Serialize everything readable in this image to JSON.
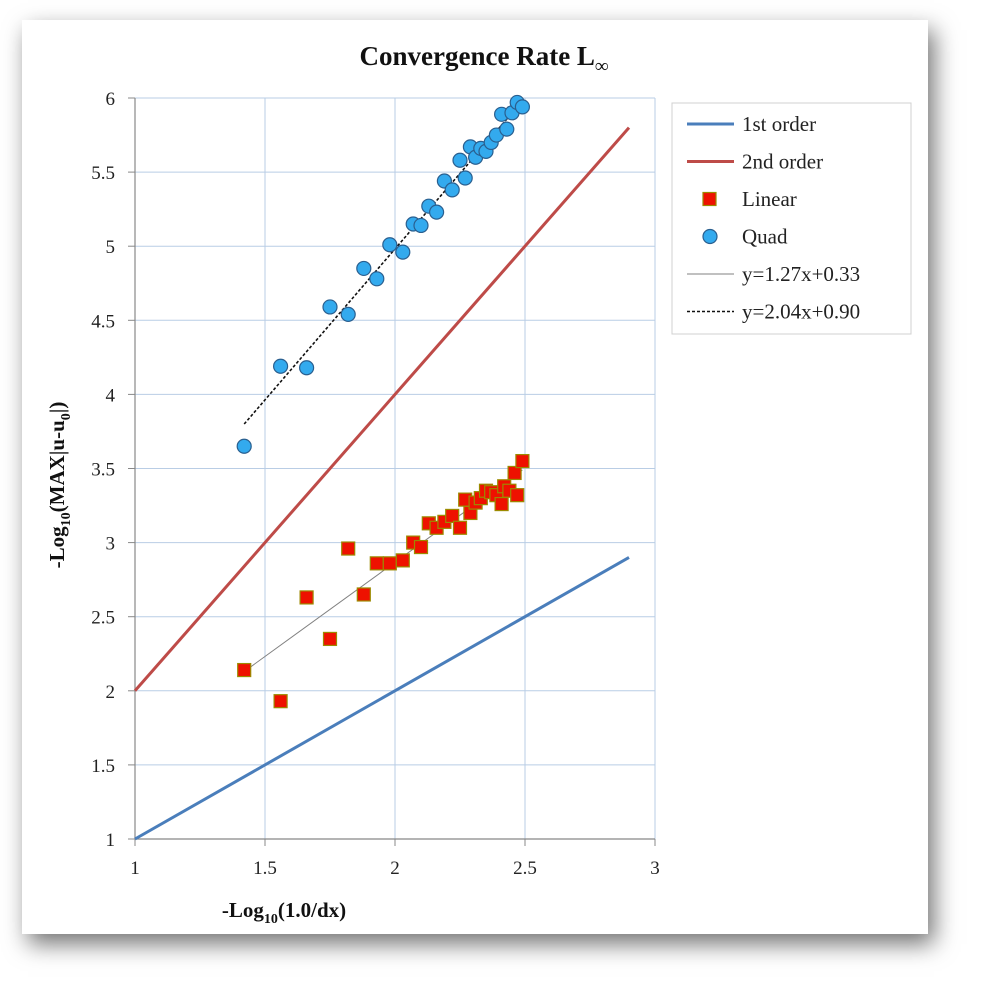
{
  "chart_data": {
    "type": "scatter",
    "title": "Convergence Rate L",
    "title_sub": "∞",
    "xlabel": {
      "pre": "-Log",
      "sub": "10",
      "post": "(1.0/dx)"
    },
    "ylabel": {
      "pre": "-Log",
      "sub": "10",
      "mid": "(MAX|u-u",
      "sub2": "0",
      "post": "|)"
    },
    "xlim": [
      1,
      3
    ],
    "ylim": [
      1,
      6
    ],
    "x_ticks": [
      "1",
      "1.5",
      "2",
      "2.5",
      "3"
    ],
    "y_ticks": [
      "1",
      "1.5",
      "2",
      "2.5",
      "3",
      "3.5",
      "4",
      "4.5",
      "5",
      "5.5",
      "6"
    ],
    "grid": true,
    "legend_position": "right",
    "series": [
      {
        "name": "1st order",
        "kind": "line",
        "color": "#4a7ebb",
        "x": [
          1.0,
          2.9
        ],
        "y": [
          1.0,
          2.9
        ]
      },
      {
        "name": "2nd order",
        "kind": "line",
        "color": "#be4b48",
        "x": [
          1.0,
          2.9
        ],
        "y": [
          2.0,
          5.8
        ]
      },
      {
        "name": "Linear",
        "kind": "marker-square",
        "color": "#ee1100",
        "stroke": "#9c8a00",
        "x": [
          1.42,
          1.56,
          1.66,
          1.75,
          1.82,
          1.88,
          1.93,
          1.98,
          2.03,
          2.07,
          2.1,
          2.13,
          2.16,
          2.19,
          2.22,
          2.25,
          2.27,
          2.29,
          2.31,
          2.33,
          2.35,
          2.37,
          2.39,
          2.41,
          2.42,
          2.44,
          2.46,
          2.47,
          2.49
        ],
        "y": [
          2.14,
          1.93,
          2.63,
          2.35,
          2.96,
          2.65,
          2.86,
          2.86,
          2.88,
          3.0,
          2.97,
          3.13,
          3.1,
          3.14,
          3.18,
          3.1,
          3.29,
          3.2,
          3.27,
          3.3,
          3.35,
          3.34,
          3.32,
          3.26,
          3.38,
          3.35,
          3.47,
          3.32,
          3.55
        ]
      },
      {
        "name": "Quad",
        "kind": "marker-circle",
        "color": "#33aaee",
        "stroke": "#2a5f8f",
        "x": [
          1.42,
          1.56,
          1.66,
          1.75,
          1.82,
          1.88,
          1.93,
          1.98,
          2.03,
          2.07,
          2.1,
          2.13,
          2.16,
          2.19,
          2.22,
          2.25,
          2.27,
          2.29,
          2.31,
          2.33,
          2.35,
          2.37,
          2.39,
          2.41,
          2.43,
          2.45,
          2.47,
          2.49
        ],
        "y": [
          3.65,
          4.19,
          4.18,
          4.59,
          4.54,
          4.85,
          4.78,
          5.01,
          4.96,
          5.15,
          5.14,
          5.27,
          5.23,
          5.44,
          5.38,
          5.58,
          5.46,
          5.67,
          5.6,
          5.66,
          5.64,
          5.7,
          5.75,
          5.89,
          5.79,
          5.9,
          5.97,
          5.94
        ]
      },
      {
        "name": "y=1.27x+0.33",
        "kind": "trend-solid",
        "color": "#808080",
        "x": [
          1.42,
          2.49
        ],
        "y": [
          2.13,
          3.49
        ]
      },
      {
        "name": "y=2.04x+0.90",
        "kind": "trend-dashed",
        "color": "#111111",
        "x": [
          1.42,
          2.49
        ],
        "y": [
          3.8,
          5.98
        ]
      }
    ]
  }
}
